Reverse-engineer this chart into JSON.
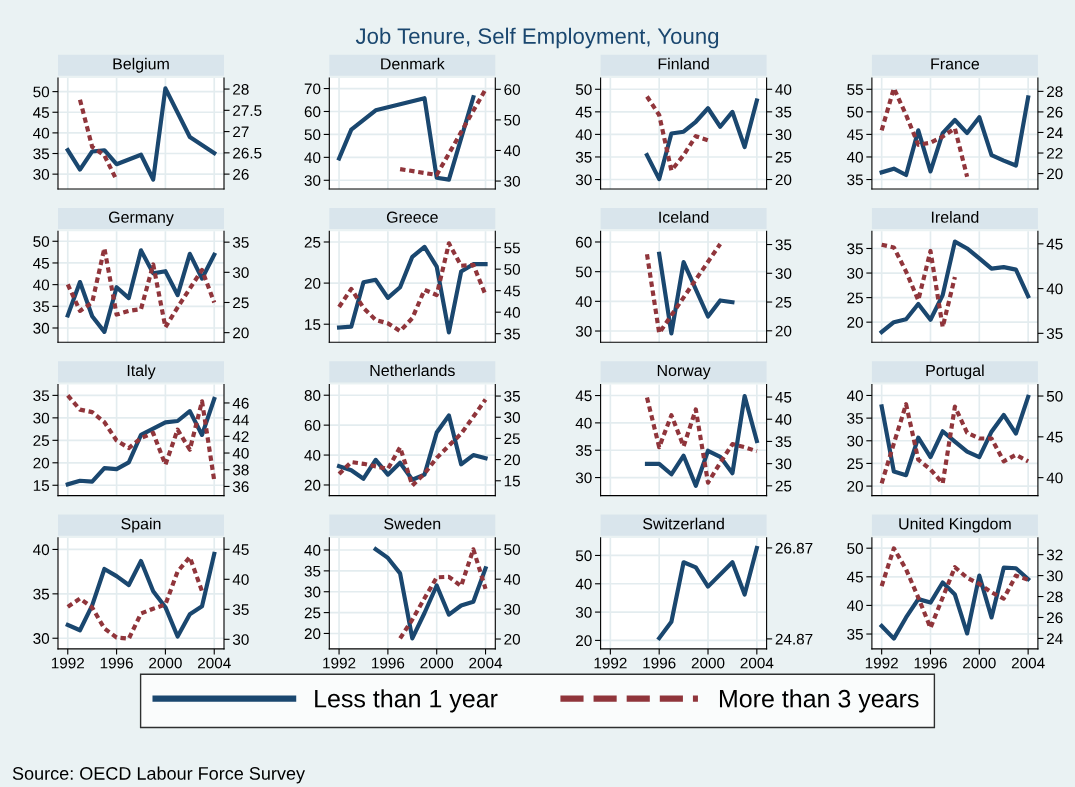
{
  "chart_data": [
    {
      "type": "line",
      "title": "Belgium",
      "xlim": [
        1991.2,
        2004.8
      ],
      "xticks": [
        1992,
        1996,
        2000,
        2004
      ],
      "ylim": [
        26.4,
        53.3
      ],
      "yticks": [
        30,
        35,
        40,
        45,
        50
      ],
      "y2lim": [
        25.65,
        28.26
      ],
      "y2ticks": [
        26,
        26.5,
        27,
        27.5,
        28
      ],
      "grid": true,
      "tick_labels": "y",
      "legend": "bottom",
      "annotations": [
        "Job Tenure, Self Employment, Young",
        "Source: OECD Labour Force Survey"
      ],
      "series": [
        {
          "name": "Less than 1 year",
          "color": "#1a476f",
          "line_style": "solid",
          "x": [
            1992,
            1993,
            1994,
            1995,
            1996,
            1998,
            1999,
            2000,
            2002,
            2004
          ],
          "values": [
            35.8,
            31.1,
            35.5,
            35.8,
            32.4,
            34.7,
            28.7,
            50.8,
            39.0,
            35.1
          ]
        },
        {
          "name": "More than 3 years",
          "color": "#90353b",
          "line_style": "dashed",
          "axis": "y2",
          "x": [
            1993,
            1994,
            1995,
            1996
          ],
          "values": [
            27.75,
            26.64,
            26.44,
            25.86
          ]
        }
      ]
    },
    {
      "type": "line",
      "title": "Denmark",
      "xlim": [
        1991.2,
        2004.8
      ],
      "xticks": [
        1992,
        1996,
        2000,
        2004
      ],
      "ylim": [
        26.2,
        74.6
      ],
      "yticks": [
        30,
        40,
        50,
        60,
        70
      ],
      "y2lim": [
        27.4,
        63.7
      ],
      "y2ticks": [
        30,
        40,
        50,
        60
      ],
      "grid": true,
      "tick_labels": "y",
      "series": [
        {
          "color": "#1a476f",
          "line_style": "solid",
          "x": [
            1992,
            1993,
            1995,
            1999,
            2000,
            2001,
            2003
          ],
          "values": [
            39.5,
            52.1,
            60.5,
            65.8,
            31.1,
            30.3,
            66.2
          ]
        },
        {
          "color": "#90353b",
          "line_style": "dashed",
          "axis": "y2",
          "x": [
            1997,
            2000,
            2001,
            2002,
            2003,
            2004
          ],
          "values": [
            33.9,
            32.0,
            39,
            46,
            53,
            60
          ]
        }
      ]
    },
    {
      "type": "line",
      "title": "Finland",
      "xlim": [
        1991.2,
        2004.8
      ],
      "xticks": [
        1992,
        1996,
        2000,
        2004
      ],
      "ylim": [
        27.9,
        52.5
      ],
      "yticks": [
        30,
        35,
        40,
        45,
        50
      ],
      "y2lim": [
        17.9,
        42.5
      ],
      "y2ticks": [
        20,
        25,
        30,
        35,
        40
      ],
      "grid": true,
      "tick_labels": "y",
      "series": [
        {
          "color": "#1a476f",
          "line_style": "solid",
          "x": [
            1995,
            1996,
            1997,
            1998,
            1999,
            2000,
            2001,
            2002,
            2003,
            2004
          ],
          "values": [
            35.4,
            30.1,
            40.2,
            40.6,
            42.8,
            45.8,
            41.7,
            45.0,
            37.2,
            47.5
          ]
        },
        {
          "color": "#90353b",
          "line_style": "dashed",
          "axis": "y2",
          "x": [
            1995,
            1996,
            1997,
            1998,
            1999,
            2000
          ],
          "values": [
            38.4,
            34.3,
            22.0,
            25.4,
            29.6,
            28.7
          ]
        }
      ]
    },
    {
      "type": "line",
      "title": "France",
      "xlim": [
        1991.2,
        2004.8
      ],
      "xticks": [
        1992,
        1996,
        2000,
        2004
      ],
      "ylim": [
        32.9,
        57.5
      ],
      "yticks": [
        35,
        40,
        45,
        50,
        55
      ],
      "y2lim": [
        18.5,
        29.3
      ],
      "y2ticks": [
        20,
        22,
        24,
        26,
        28
      ],
      "grid": true,
      "tick_labels": "y",
      "series": [
        {
          "color": "#1a476f",
          "line_style": "solid",
          "x": [
            1992,
            1993,
            1994,
            1995,
            1996,
            1997,
            1998,
            1999,
            2000,
            2001,
            2002,
            2003,
            2004
          ],
          "values": [
            36.6,
            37.4,
            36.0,
            45.9,
            36.8,
            45.3,
            48.2,
            45.3,
            48.8,
            40.4,
            39.2,
            38.1,
            53.2
          ]
        },
        {
          "color": "#90353b",
          "line_style": "dashed",
          "axis": "y2",
          "x": [
            1992,
            1993,
            1994,
            1995,
            1996,
            1997,
            1998,
            1999
          ],
          "values": [
            24.2,
            28.3,
            25.7,
            22.8,
            23.0,
            23.6,
            24.4,
            19.7
          ]
        }
      ]
    },
    {
      "type": "line",
      "title": "Germany",
      "xlim": [
        1991.2,
        2004.8
      ],
      "xticks": [
        1992,
        1996,
        2000,
        2004
      ],
      "ylim": [
        26.7,
        52.3
      ],
      "yticks": [
        30,
        35,
        40,
        45,
        50
      ],
      "y2lim": [
        18.4,
        36.8
      ],
      "y2ticks": [
        20,
        25,
        30,
        35
      ],
      "grid": true,
      "tick_labels": "y",
      "series": [
        {
          "color": "#1a476f",
          "line_style": "solid",
          "x": [
            1992,
            1993,
            1994,
            1995,
            1996,
            1997,
            1998,
            1999,
            2000,
            2001,
            2002,
            2003,
            2004
          ],
          "values": [
            32.9,
            40.6,
            32.7,
            29.1,
            39.4,
            36.9,
            47.9,
            42.6,
            43.1,
            37.6,
            47.1,
            41.4,
            46.9
          ]
        },
        {
          "color": "#90353b",
          "line_style": "dashed",
          "axis": "y2",
          "x": [
            1992,
            1993,
            1994,
            1995,
            1996,
            1997,
            1998,
            1999,
            2000,
            2001,
            2002,
            2003,
            2004
          ],
          "values": [
            28.0,
            23.6,
            25.0,
            34.0,
            23.0,
            23.6,
            23.9,
            31.3,
            20.9,
            24.2,
            27.3,
            30.4,
            25.0
          ]
        }
      ]
    },
    {
      "type": "line",
      "title": "Greece",
      "xlim": [
        1991.2,
        2004.8
      ],
      "xticks": [
        1992,
        1996,
        2000,
        2004
      ],
      "ylim": [
        12.8,
        26.3
      ],
      "yticks": [
        15,
        20,
        25
      ],
      "y2lim": [
        33.0,
        58.8
      ],
      "y2ticks": [
        35,
        40,
        45,
        50,
        55
      ],
      "grid": true,
      "tick_labels": "y",
      "series": [
        {
          "color": "#1a476f",
          "line_style": "solid",
          "x": [
            1992,
            1993,
            1994,
            1995,
            1996,
            1997,
            1998,
            1999,
            2000,
            2001,
            2002,
            2003,
            2004
          ],
          "values": [
            14.6,
            14.7,
            20.1,
            20.4,
            18.2,
            19.5,
            23.2,
            24.4,
            22.0,
            14.0,
            21.4,
            22.3,
            22.3
          ]
        },
        {
          "color": "#90353b",
          "line_style": "dashed",
          "axis": "y2",
          "x": [
            1992,
            1993,
            1994,
            1995,
            1996,
            1997,
            1998,
            1999,
            2000,
            2001,
            2002,
            2003,
            2004
          ],
          "values": [
            41.2,
            45.4,
            41.0,
            38.2,
            37.4,
            35.6,
            38.6,
            45.2,
            44.0,
            56.0,
            50.8,
            51.0,
            44.0
          ]
        }
      ]
    },
    {
      "type": "line",
      "title": "Iceland",
      "xlim": [
        1991.2,
        2004.8
      ],
      "xticks": [
        1992,
        1996,
        2000,
        2004
      ],
      "ylim": [
        26.2,
        63.6
      ],
      "yticks": [
        30,
        40,
        50,
        60
      ],
      "y2lim": [
        18.0,
        37.3
      ],
      "y2ticks": [
        20,
        25,
        30,
        35
      ],
      "grid": true,
      "tick_labels": "y",
      "series": [
        {
          "color": "#1a476f",
          "line_style": "solid",
          "x": [
            1996,
            1997,
            1998,
            2000,
            2001,
            2002
          ],
          "values": [
            56.0,
            29.2,
            53.2,
            34.9,
            40.3,
            39.7
          ]
        },
        {
          "color": "#90353b",
          "line_style": "dashed",
          "axis": "y2",
          "x": [
            1995,
            1996,
            2001
          ],
          "values": [
            33.3,
            19.6,
            35.1
          ]
        }
      ]
    },
    {
      "type": "line",
      "title": "Ireland",
      "xlim": [
        1991.2,
        2004.8
      ],
      "xticks": [
        1992,
        1996,
        2000,
        2004
      ],
      "ylim": [
        15.9,
        38.5
      ],
      "yticks": [
        20,
        25,
        30,
        35
      ],
      "y2lim": [
        34.0,
        46.4
      ],
      "y2ticks": [
        35,
        40,
        45
      ],
      "grid": true,
      "tick_labels": "y",
      "series": [
        {
          "color": "#1a476f",
          "line_style": "solid",
          "x": [
            1992,
            1993,
            1994,
            1995,
            1996,
            1997,
            1998,
            1999,
            2000,
            2001,
            2002,
            2003,
            2004
          ],
          "values": [
            18.0,
            20.0,
            20.6,
            23.7,
            20.5,
            25.5,
            36.4,
            35.0,
            33.0,
            30.9,
            31.2,
            30.7,
            25.3
          ]
        },
        {
          "color": "#90353b",
          "line_style": "dashed",
          "axis": "y2",
          "x": [
            1992,
            1993,
            1994,
            1995,
            1996,
            1997,
            1998
          ],
          "values": [
            44.9,
            44.6,
            41.9,
            38.7,
            44.2,
            35.7,
            41.3
          ]
        }
      ]
    },
    {
      "type": "line",
      "title": "Italy",
      "xlim": [
        1991.2,
        2004.8
      ],
      "xticks": [
        1992,
        1996,
        2000,
        2004
      ],
      "ylim": [
        12.7,
        37.4
      ],
      "yticks": [
        15,
        20,
        25,
        30,
        35
      ],
      "y2lim": [
        34.9,
        48.2
      ],
      "y2ticks": [
        36,
        38,
        40,
        42,
        44,
        46
      ],
      "grid": true,
      "tick_labels": "y",
      "series": [
        {
          "color": "#1a476f",
          "line_style": "solid",
          "x": [
            1992,
            1993,
            1994,
            1995,
            1996,
            1997,
            1998,
            1999,
            2000,
            2001,
            2002,
            2003,
            2004
          ],
          "values": [
            15.2,
            16.0,
            15.8,
            18.8,
            18.6,
            20.1,
            26.2,
            27.6,
            29.0,
            29.3,
            31.5,
            26.2,
            34.2
          ]
        },
        {
          "color": "#90353b",
          "line_style": "dashed",
          "axis": "y2",
          "x": [
            1992,
            1993,
            1994,
            1995,
            1996,
            1997,
            1998,
            1999,
            2000,
            2001,
            2002,
            2003,
            2004
          ],
          "values": [
            46.9,
            45.2,
            44.9,
            43.7,
            41.5,
            40.6,
            41.8,
            42.4,
            38.6,
            42.8,
            40.4,
            46.2,
            36.7
          ]
        }
      ]
    },
    {
      "type": "line",
      "title": "Netherlands",
      "xlim": [
        1991.2,
        2004.8
      ],
      "xticks": [
        1992,
        1996,
        2000,
        2004
      ],
      "ylim": [
        12.9,
        87.1
      ],
      "yticks": [
        20,
        40,
        60,
        80
      ],
      "y2lim": [
        11.5,
        37.7
      ],
      "y2ticks": [
        15,
        20,
        25,
        30,
        35
      ],
      "grid": true,
      "tick_labels": "y",
      "series": [
        {
          "color": "#1a476f",
          "line_style": "solid",
          "x": [
            1992,
            1993,
            1994,
            1995,
            1996,
            1997,
            1998,
            1999,
            2000,
            2001,
            2002,
            2003,
            2004
          ],
          "values": [
            32.6,
            29.9,
            24.2,
            36.8,
            26.9,
            34.9,
            23.5,
            26.9,
            55.1,
            66.5,
            33.8,
            40.0,
            37.9
          ]
        },
        {
          "color": "#90353b",
          "line_style": "dashed",
          "axis": "y2",
          "x": [
            1992,
            1993,
            1994,
            1995,
            1996,
            1997,
            1998,
            1999,
            2000,
            2001,
            2002,
            2003,
            2004
          ],
          "values": [
            16.6,
            19.4,
            19.0,
            18.4,
            17.8,
            22.9,
            13.9,
            16.7,
            20.4,
            23.3,
            26.1,
            30.1,
            34.2
          ]
        }
      ]
    },
    {
      "type": "line",
      "title": "Norway",
      "xlim": [
        1991.2,
        2004.8
      ],
      "xticks": [
        1992,
        1996,
        2000,
        2004
      ],
      "ylim": [
        26.7,
        47.0
      ],
      "yticks": [
        30,
        35,
        40,
        45
      ],
      "y2lim": [
        22.8,
        47.8
      ],
      "y2ticks": [
        25,
        30,
        35,
        40,
        45
      ],
      "grid": true,
      "tick_labels": "y",
      "series": [
        {
          "color": "#1a476f",
          "line_style": "solid",
          "x": [
            1995,
            1996,
            1997,
            1998,
            1999,
            2000,
            2001,
            2002,
            2003,
            2004
          ],
          "values": [
            32.5,
            32.5,
            30.6,
            34.0,
            28.5,
            34.9,
            33.8,
            30.8,
            44.9,
            36.7
          ]
        },
        {
          "color": "#90353b",
          "line_style": "dashed",
          "axis": "y2",
          "x": [
            1995,
            1996,
            1997,
            1998,
            1999,
            2000,
            2001,
            2002,
            2003,
            2004
          ],
          "values": [
            44.9,
            33.7,
            40.9,
            33.9,
            42.2,
            25.7,
            30.2,
            34.4,
            33.7,
            32.8
          ]
        }
      ]
    },
    {
      "type": "line",
      "title": "Portugal",
      "xlim": [
        1991.2,
        2004.8
      ],
      "xticks": [
        1992,
        1996,
        2000,
        2004
      ],
      "ylim": [
        17.9,
        42.4
      ],
      "yticks": [
        20,
        25,
        30,
        35,
        40
      ],
      "y2lim": [
        37.8,
        51.4
      ],
      "y2ticks": [
        40,
        45,
        50
      ],
      "grid": true,
      "tick_labels": "y",
      "series": [
        {
          "color": "#1a476f",
          "line_style": "solid",
          "x": [
            1992,
            1993,
            1994,
            1995,
            1996,
            1997,
            1998,
            1999,
            2000,
            2001,
            2002,
            2003,
            2004
          ],
          "values": [
            37.6,
            23.2,
            22.4,
            30.7,
            26.4,
            32.1,
            29.8,
            27.6,
            26.4,
            32.0,
            35.7,
            31.6,
            39.7
          ]
        },
        {
          "color": "#90353b",
          "line_style": "dashed",
          "axis": "y2",
          "x": [
            1992,
            1993,
            1994,
            1995,
            1996,
            1997,
            1998,
            1999,
            2000,
            2001,
            2002,
            2003,
            2004
          ],
          "values": [
            39.3,
            44.2,
            49.0,
            42.2,
            41.0,
            39.3,
            48.7,
            45.5,
            44.8,
            44.8,
            42.0,
            42.8,
            42.0
          ]
        }
      ]
    },
    {
      "type": "line",
      "title": "Spain",
      "xlim": [
        1991.2,
        2004.8
      ],
      "xticks": [
        1992,
        1996,
        2000,
        2004
      ],
      "ylim": [
        28.8,
        41.3
      ],
      "yticks": [
        30,
        35,
        40
      ],
      "y2lim": [
        28.4,
        46.9
      ],
      "y2ticks": [
        30,
        35,
        40,
        45
      ],
      "grid": true,
      "series": [
        {
          "color": "#1a476f",
          "line_style": "solid",
          "x": [
            1992,
            1993,
            1994,
            1995,
            1996,
            1997,
            1998,
            1999,
            2000,
            2001,
            2002,
            2003,
            2004
          ],
          "values": [
            31.5,
            30.9,
            33.7,
            37.8,
            37.0,
            36.0,
            38.7,
            35.3,
            33.5,
            30.2,
            32.7,
            33.6,
            39.5
          ]
        },
        {
          "color": "#90353b",
          "line_style": "dashed",
          "axis": "y2",
          "x": [
            1992,
            1993,
            1994,
            1995,
            1996,
            1997,
            1998,
            1999,
            2000,
            2001,
            2002,
            2003
          ],
          "values": [
            35.4,
            36.8,
            35.3,
            31.8,
            30.3,
            30.1,
            34.3,
            35.1,
            35.8,
            41.3,
            43.7,
            38.0
          ]
        }
      ]
    },
    {
      "type": "line",
      "title": "Sweden",
      "xlim": [
        1991.2,
        2004.8
      ],
      "xticks": [
        1992,
        1996,
        2000,
        2004
      ],
      "ylim": [
        16.3,
        42.9
      ],
      "yticks": [
        20,
        25,
        30,
        35,
        40
      ],
      "y2lim": [
        16.7,
        53.8
      ],
      "y2ticks": [
        20,
        30,
        40,
        50
      ],
      "grid": true,
      "series": [
        {
          "color": "#1a476f",
          "line_style": "solid",
          "x": [
            1995,
            1996,
            1997,
            1998,
            1999,
            2000,
            2001,
            2002,
            2003,
            2004
          ],
          "values": [
            40.2,
            38.1,
            34.4,
            18.8,
            24.9,
            31.5,
            24.5,
            26.7,
            27.6,
            35.6
          ]
        },
        {
          "color": "#90353b",
          "line_style": "dashed",
          "axis": "y2",
          "x": [
            1997,
            1998,
            1999,
            2000,
            2001,
            2002,
            2003,
            2004
          ],
          "values": [
            20.2,
            26.5,
            33.6,
            40.6,
            40.8,
            37.7,
            50.0,
            36.8
          ]
        }
      ]
    },
    {
      "type": "line",
      "title": "Switzerland",
      "xlim": [
        1991.2,
        2004.8
      ],
      "xticks": [
        1992,
        1996,
        2000,
        2004
      ],
      "ylim": [
        17.0,
        56.2
      ],
      "yticks": [
        20,
        30,
        40,
        50
      ],
      "y2lim": [
        24.65,
        27.09
      ],
      "y2ticks": [
        24.87,
        26.87
      ],
      "grid": true,
      "series": [
        {
          "color": "#1a476f",
          "line_style": "solid",
          "x": [
            1996,
            1997,
            1998,
            1999,
            2000,
            2002,
            2003,
            2004
          ],
          "values": [
            20.8,
            26.6,
            47.6,
            45.8,
            39.0,
            47.6,
            36.2,
            52.6
          ]
        }
      ]
    },
    {
      "type": "line",
      "title": "United Kingdom",
      "xlim": [
        1991.2,
        2004.8
      ],
      "xticks": [
        1992,
        1996,
        2000,
        2004
      ],
      "ylim": [
        32.4,
        51.8
      ],
      "yticks": [
        35,
        40,
        45,
        50
      ],
      "y2lim": [
        23.0,
        33.6
      ],
      "y2ticks": [
        24,
        26,
        28,
        30,
        32
      ],
      "grid": true,
      "series": [
        {
          "color": "#1a476f",
          "line_style": "solid",
          "x": [
            1992,
            1993,
            1994,
            1995,
            1996,
            1997,
            1998,
            1999,
            2000,
            2001,
            2002,
            2003,
            2004
          ],
          "values": [
            36.4,
            34.2,
            37.9,
            41.1,
            40.5,
            44.0,
            41.9,
            35.1,
            45.2,
            37.9,
            46.6,
            46.5,
            44.6
          ]
        },
        {
          "color": "#90353b",
          "line_style": "dashed",
          "axis": "y2",
          "x": [
            1992,
            1993,
            1994,
            1995,
            1996,
            1997,
            1998,
            1999,
            2000,
            2001,
            2002,
            2003,
            2004
          ],
          "values": [
            29.0,
            32.6,
            30.6,
            27.9,
            25.0,
            27.9,
            30.8,
            29.8,
            29.2,
            28.4,
            27.8,
            30.0,
            29.6
          ]
        }
      ]
    }
  ]
}
